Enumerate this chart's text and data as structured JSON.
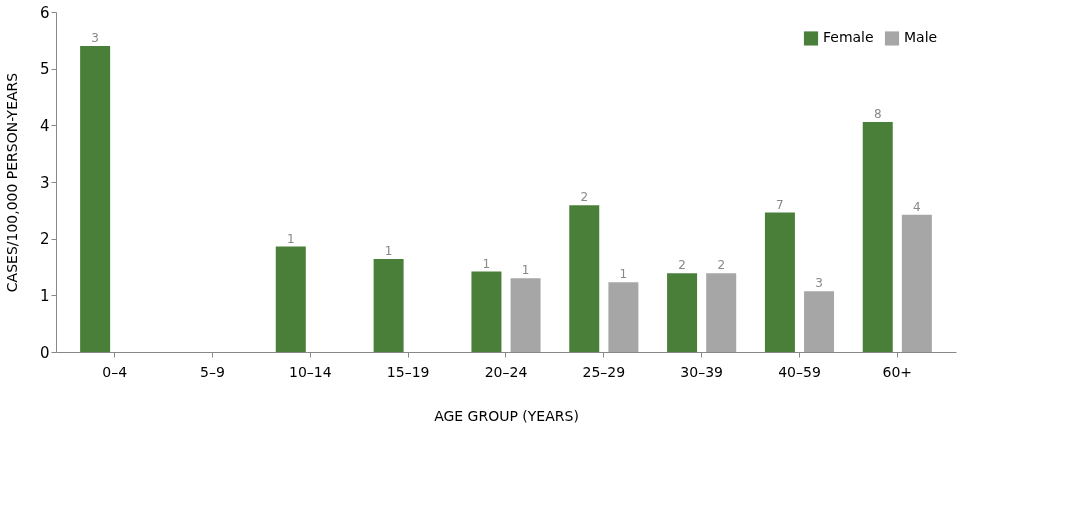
{
  "chart_data": {
    "type": "bar",
    "xlabel": "AGE GROUP (YEARS)",
    "ylabel": "CASES/100,000 PERSON-YEARS",
    "categories": [
      "0–4",
      "5–9",
      "10–14",
      "15–19",
      "20–24",
      "25–29",
      "30–39",
      "40–59",
      "60+"
    ],
    "series": [
      {
        "name": "Female",
        "color": "#4a7f3a",
        "values": [
          5.4,
          null,
          1.86,
          1.64,
          1.42,
          2.59,
          1.39,
          2.46,
          4.06
        ]
      },
      {
        "name": "Male",
        "color": "#a6a6a6",
        "values": [
          null,
          null,
          null,
          null,
          1.3,
          1.23,
          1.39,
          1.07,
          2.42
        ]
      }
    ],
    "annotations": [
      {
        "text": "3",
        "x": "0–4",
        "y": 5.4
      },
      {
        "text": "1",
        "x": "10–14",
        "y": 1.86
      },
      {
        "text": "1",
        "x": "15–19",
        "y": 1.64
      },
      {
        "text": "1",
        "x": "20–24",
        "y": 1.42
      },
      {
        "text": "1",
        "x": "20–24",
        "y": 1.3
      },
      {
        "text": "2",
        "x": "25–29",
        "y": 2.59
      },
      {
        "text": "1",
        "x": "25–29",
        "y": 1.23
      },
      {
        "text": "2",
        "x": "30–39",
        "y": 1.39
      },
      {
        "text": "2",
        "x": "30–39",
        "y": 1.39
      },
      {
        "text": "7",
        "x": "40–59",
        "y": 2.46
      },
      {
        "text": "3",
        "x": "40–59",
        "y": 1.07
      },
      {
        "text": "8",
        "x": "60+",
        "y": 4.06
      },
      {
        "text": "4",
        "x": "60+",
        "y": 2.42
      }
    ],
    "ylim": [
      0,
      6
    ],
    "yticks": [
      0,
      1,
      2,
      3,
      4,
      5,
      6
    ],
    "grid": false,
    "legend": "top right"
  }
}
